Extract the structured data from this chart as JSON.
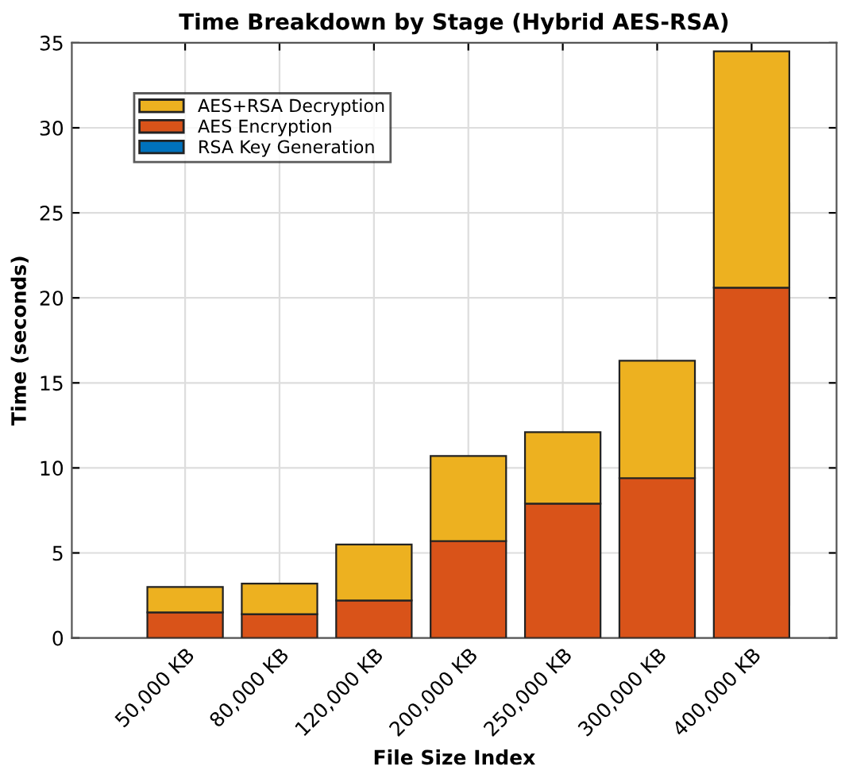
{
  "chart_data": {
    "type": "bar",
    "stacked": true,
    "title": "Time Breakdown by Stage (Hybrid AES-RSA)",
    "xlabel": "File Size Index",
    "ylabel": "Time (seconds)",
    "categories": [
      "50,000 KB",
      "80,000 KB",
      "120,000 KB",
      "200,000 KB",
      "250,000 KB",
      "300,000 KB",
      "400,000 KB"
    ],
    "series": [
      {
        "name": "RSA Key Generation",
        "color": "#0072bd",
        "values": [
          0,
          0,
          0,
          0,
          0,
          0,
          0
        ]
      },
      {
        "name": "AES Encryption",
        "color": "#d95319",
        "values": [
          1.5,
          1.4,
          2.2,
          5.7,
          7.9,
          9.4,
          20.6
        ]
      },
      {
        "name": "AES+RSA Decryption",
        "color": "#edb120",
        "values": [
          1.5,
          1.8,
          3.3,
          5.0,
          4.2,
          6.9,
          13.9
        ]
      }
    ],
    "ylim": [
      0,
      35
    ],
    "yticks": [
      0,
      5,
      10,
      15,
      20,
      25,
      30,
      35
    ],
    "grid": true,
    "legend": "top left"
  }
}
